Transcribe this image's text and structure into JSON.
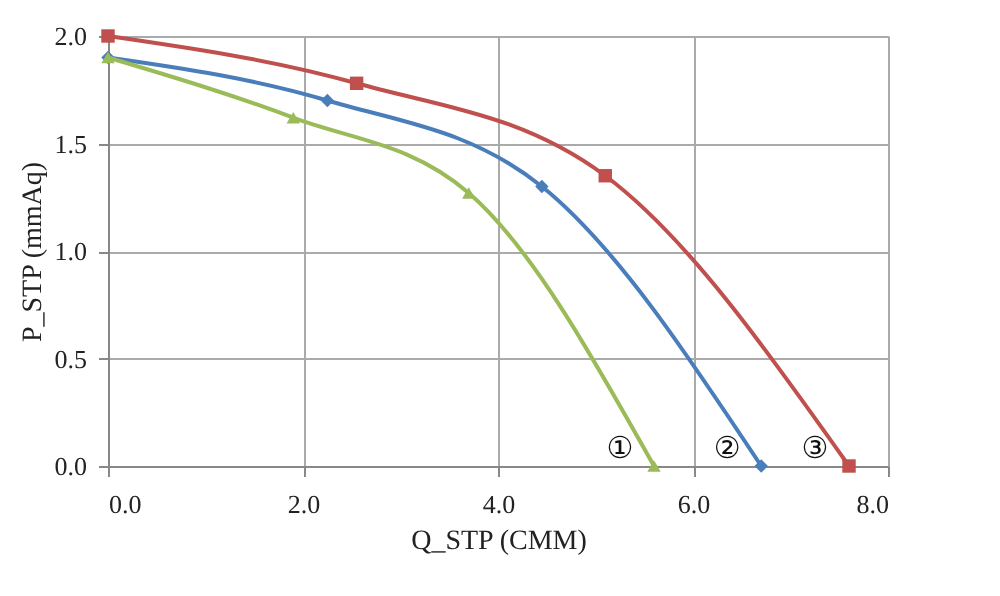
{
  "chart_data": {
    "type": "line",
    "xlabel": "Q_STP (CMM)",
    "ylabel": "P_STP (mmAq)",
    "xlim": [
      0,
      8
    ],
    "xticks": [
      {
        "value": 0,
        "label": "0.0"
      },
      {
        "value": 2,
        "label": "2.0"
      },
      {
        "value": 4,
        "label": "4.0"
      },
      {
        "value": 6,
        "label": "6.0"
      },
      {
        "value": 8,
        "label": "8.0"
      }
    ],
    "ylim": [
      0,
      2
    ],
    "yticks": [
      {
        "value": 0,
        "label": "0.0"
      },
      {
        "value": 0.5,
        "label": "0.5"
      },
      {
        "value": 1,
        "label": "1.0"
      },
      {
        "value": 1.5,
        "label": "1.5"
      },
      {
        "value": 2,
        "label": "2.0"
      }
    ],
    "grid": true,
    "line_style": "solid",
    "series": [
      {
        "color": "#c0504d",
        "marker": "square",
        "x": [
          0,
          2.55,
          5.1,
          7.6
        ],
        "values": [
          2.0,
          1.78,
          1.35,
          0
        ]
      },
      {
        "color": "#4a7ebb",
        "marker": "diamond",
        "x": [
          0,
          2.25,
          4.45,
          6.7
        ],
        "values": [
          1.9,
          1.7,
          1.3,
          0
        ]
      },
      {
        "color": "#9bbb59",
        "marker": "triangle",
        "x": [
          0,
          1.9,
          3.7,
          5.6
        ],
        "values": [
          1.9,
          1.62,
          1.27,
          0
        ]
      }
    ],
    "annotations": [
      {
        "text": "①",
        "x": 5.6,
        "y": 0
      },
      {
        "text": "②",
        "x": 6.7,
        "y": 0
      },
      {
        "text": "③",
        "x": 7.6,
        "y": 0
      }
    ]
  }
}
